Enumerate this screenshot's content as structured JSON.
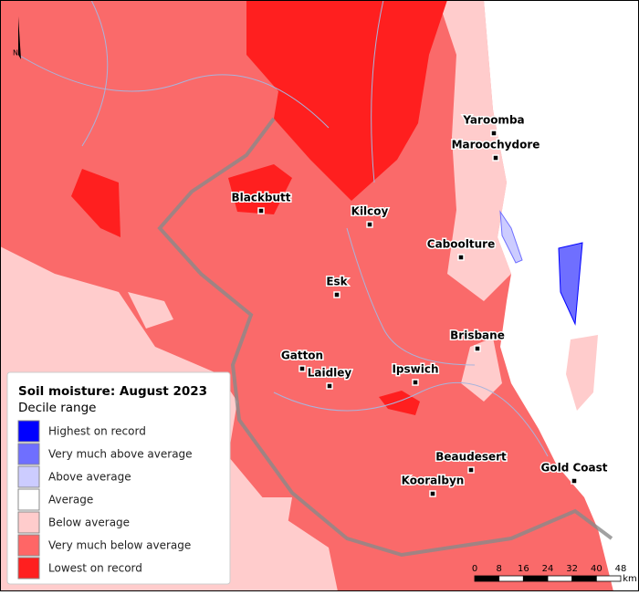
{
  "north": "N",
  "legend": {
    "title": "Soil moisture: August 2023",
    "subtitle": "Decile range",
    "items": [
      {
        "label": "Highest on record",
        "color": "#0000ff"
      },
      {
        "label": "Very much above average",
        "color": "#6f6fff"
      },
      {
        "label": "Above average",
        "color": "#ccccff"
      },
      {
        "label": "Average",
        "color": "#ffffff"
      },
      {
        "label": "Below average",
        "color": "#ffcccc"
      },
      {
        "label": "Very much below average",
        "color": "#ff6666"
      },
      {
        "label": "Lowest on record",
        "color": "#ff1f1f"
      }
    ]
  },
  "towns": [
    "Yaroomba",
    "Maroochydore",
    "Blackbutt",
    "Kilcoy",
    "Caboolture",
    "Esk",
    "Brisbane",
    "Gatton",
    "Laidley",
    "Ipswich",
    "Beaudesert",
    "Gold Coast",
    "Kooralbyn"
  ],
  "scale": {
    "ticks": [
      0,
      8,
      16,
      24,
      32,
      40,
      48
    ],
    "unit": "km"
  }
}
